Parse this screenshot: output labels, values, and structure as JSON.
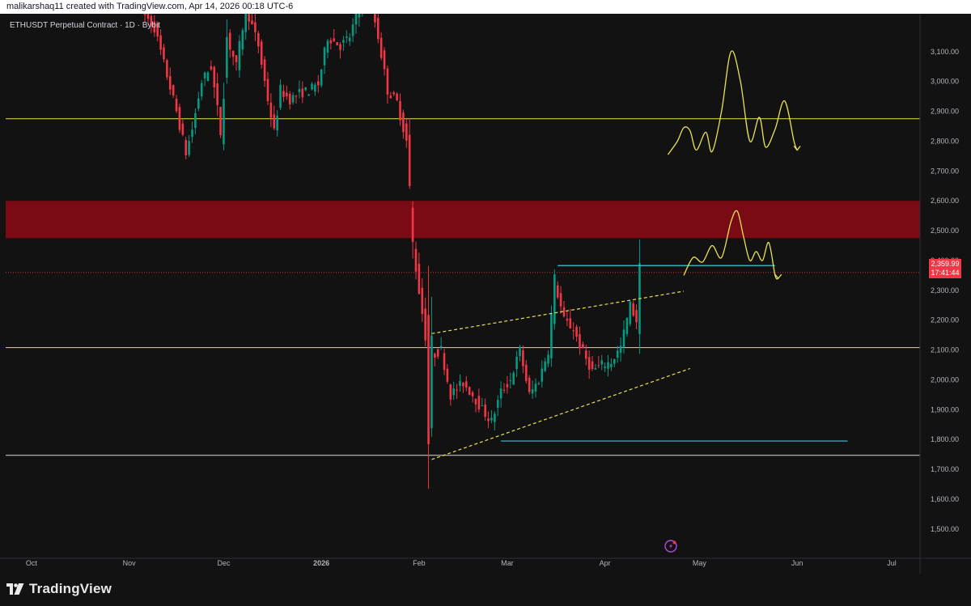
{
  "header": {
    "attribution": "malikarshaq11 created with TradingView.com, Apr 14, 2026 00:18 UTC-6"
  },
  "symbol_title": "ETHUSDT Perpetual Contract · 1D · Bybit",
  "price_badge": {
    "price": "2,359.99",
    "countdown": "17:41:44"
  },
  "footer": {
    "logo_text": "TradingView"
  },
  "colors": {
    "background": "#121212",
    "up_candle": "#089981",
    "down_candle": "#f23645",
    "horizontal_levels": "#e7e35a",
    "trendlines": "#e7e35a",
    "cyan_levels": "#42c2dc",
    "resistance_zone": "#7a0b14",
    "projection_path": "#e7e35a"
  },
  "chart_data": {
    "type": "candlestick",
    "title": "ETHUSDT Perpetual Contract · 1D · Bybit",
    "xlabel": "",
    "ylabel": "",
    "x_tick_labels": [
      "Oct",
      "Nov",
      "Dec",
      "2026",
      "Feb",
      "Mar",
      "Apr",
      "May",
      "Jun",
      "Jul"
    ],
    "y_tick_labels": [
      "3,100.00",
      "3,000.00",
      "2,900.00",
      "2,800.00",
      "2,700.00",
      "2,600.00",
      "2,500.00",
      "2,400.00",
      "2,300.00",
      "2,200.00",
      "2,100.00",
      "2,000.00",
      "1,900.00",
      "1,800.00",
      "1,700.00",
      "1,600.00",
      "1,500.00"
    ],
    "y_ticks": [
      3100,
      3000,
      2900,
      2800,
      2700,
      2600,
      2500,
      2400,
      2300,
      2200,
      2100,
      2000,
      1900,
      1800,
      1700,
      1600,
      1500
    ],
    "ylim": [
      1402,
      3227
    ],
    "xlim": [
      "2025-09-21",
      "2026-07-10"
    ],
    "last_price": 2359.99,
    "grid": false,
    "price_path": [
      [
        "2025-11-05",
        3250
      ],
      [
        "2025-11-10",
        3180
      ],
      [
        "2025-11-14",
        3020
      ],
      [
        "2025-11-17",
        2900
      ],
      [
        "2025-11-20",
        2760
      ],
      [
        "2025-11-22",
        2840
      ],
      [
        "2025-11-25",
        3000
      ],
      [
        "2025-11-28",
        3050
      ],
      [
        "2025-12-01",
        2830
      ],
      [
        "2025-12-03",
        3150
      ],
      [
        "2025-12-06",
        3050
      ],
      [
        "2025-12-09",
        3250
      ],
      [
        "2025-12-13",
        3120
      ],
      [
        "2025-12-16",
        2940
      ],
      [
        "2025-12-18",
        2830
      ],
      [
        "2025-12-20",
        2970
      ],
      [
        "2025-12-23",
        2940
      ],
      [
        "2025-12-26",
        2960
      ],
      [
        "2025-12-29",
        2970
      ],
      [
        "2026-01-01",
        2990
      ],
      [
        "2026-01-04",
        3150
      ],
      [
        "2026-01-08",
        3120
      ],
      [
        "2026-01-11",
        3150
      ],
      [
        "2026-01-14",
        3250
      ],
      [
        "2026-01-17",
        3300
      ],
      [
        "2026-01-20",
        3150
      ],
      [
        "2026-01-23",
        2970
      ],
      [
        "2026-01-26",
        2930
      ],
      [
        "2026-01-29",
        2800
      ],
      [
        "2026-01-31",
        2450
      ],
      [
        "2026-02-02",
        2300
      ],
      [
        "2026-02-04",
        2150
      ],
      [
        "2026-02-05",
        1800
      ],
      [
        "2026-02-06",
        2080
      ],
      [
        "2026-02-09",
        2100
      ],
      [
        "2026-02-12",
        1950
      ],
      [
        "2026-02-16",
        1990
      ],
      [
        "2026-02-19",
        1950
      ],
      [
        "2026-02-22",
        1900
      ],
      [
        "2026-02-25",
        1860
      ],
      [
        "2026-02-28",
        1960
      ],
      [
        "2026-03-03",
        2000
      ],
      [
        "2026-03-06",
        2100
      ],
      [
        "2026-03-09",
        1950
      ],
      [
        "2026-03-12",
        2000
      ],
      [
        "2026-03-15",
        2100
      ],
      [
        "2026-03-17",
        2330
      ],
      [
        "2026-03-20",
        2200
      ],
      [
        "2026-03-23",
        2170
      ],
      [
        "2026-03-26",
        2090
      ],
      [
        "2026-03-29",
        2030
      ],
      [
        "2026-04-01",
        2050
      ],
      [
        "2026-04-04",
        2060
      ],
      [
        "2026-04-07",
        2110
      ],
      [
        "2026-04-10",
        2250
      ],
      [
        "2026-04-12",
        2200
      ],
      [
        "2026-04-13",
        2360
      ]
    ],
    "horizontal_levels": [
      2875,
      2108,
      1747
    ],
    "cyan_levels": [
      {
        "from": "2026-03-17",
        "to": "2026-05-25",
        "y": 2383
      },
      {
        "from": "2026-02-27",
        "to": "2026-06-17",
        "y": 1795
      }
    ],
    "resistance_zone": [
      2475,
      2600
    ],
    "trendlines": [
      {
        "from": [
          "2026-02-05",
          2155
        ],
        "to": [
          "2026-04-26",
          2297
        ]
      },
      {
        "from": [
          "2026-02-05",
          1733
        ],
        "to": [
          "2026-04-28",
          2038
        ]
      }
    ],
    "projection_upper": [
      [
        "2026-04-21",
        2755
      ],
      [
        "2026-04-24",
        2800
      ],
      [
        "2026-04-26",
        2845
      ],
      [
        "2026-04-28",
        2835
      ],
      [
        "2026-04-30",
        2770
      ],
      [
        "2026-05-03",
        2830
      ],
      [
        "2026-05-05",
        2765
      ],
      [
        "2026-05-08",
        2900
      ],
      [
        "2026-05-11",
        3100
      ],
      [
        "2026-05-14",
        3000
      ],
      [
        "2026-05-17",
        2800
      ],
      [
        "2026-05-20",
        2880
      ],
      [
        "2026-05-22",
        2780
      ],
      [
        "2026-05-25",
        2840
      ],
      [
        "2026-05-28",
        2935
      ],
      [
        "2026-05-31",
        2800
      ],
      [
        "2026-06-01",
        2770
      ]
    ],
    "projection_lower": [
      [
        "2026-04-26",
        2350
      ],
      [
        "2026-04-29",
        2410
      ],
      [
        "2026-05-02",
        2395
      ],
      [
        "2026-05-05",
        2450
      ],
      [
        "2026-05-08",
        2410
      ],
      [
        "2026-05-11",
        2530
      ],
      [
        "2026-05-13",
        2565
      ],
      [
        "2026-05-15",
        2480
      ],
      [
        "2026-05-17",
        2400
      ],
      [
        "2026-05-19",
        2430
      ],
      [
        "2026-05-21",
        2400
      ],
      [
        "2026-05-23",
        2460
      ],
      [
        "2026-05-25",
        2350
      ],
      [
        "2026-05-26",
        2340
      ]
    ]
  }
}
